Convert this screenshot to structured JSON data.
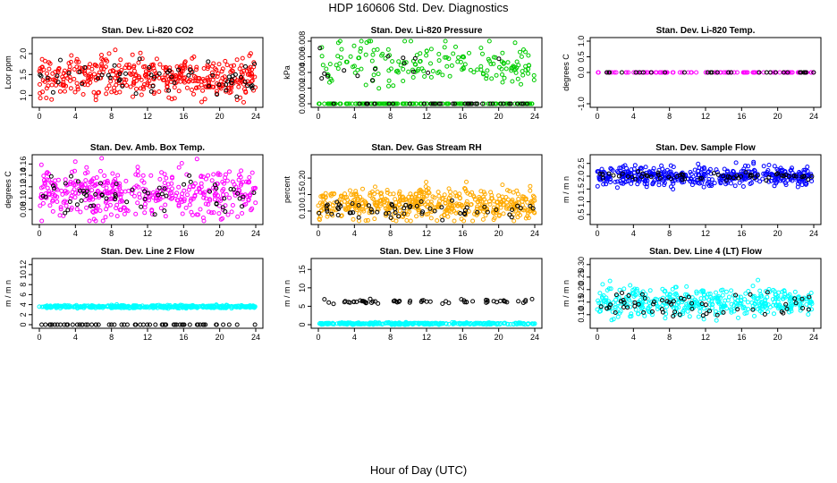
{
  "title": "HDP  160606  Std. Dev. Diagnostics",
  "xlabel": "Hour of Day (UTC)",
  "chart_data": [
    {
      "type": "scatter",
      "title": "Stan. Dev. Li-820 CO2",
      "ylabel": "Lcor ppm",
      "xlim": [
        0,
        24
      ],
      "ylim": [
        0.8,
        2.3
      ],
      "xticks": [
        "0",
        "4",
        "8",
        "12",
        "16",
        "20",
        "24"
      ],
      "yticks": [
        "1.0",
        "1.5",
        "2.0"
      ],
      "ytick_values": [
        1.0,
        1.5,
        2.0
      ],
      "series": [
        {
          "color": "#ff0000",
          "mean": 1.45,
          "spread": 0.25,
          "count": 420
        },
        {
          "color": "#000000",
          "mean": 1.4,
          "spread": 0.22,
          "count": 60
        }
      ]
    },
    {
      "type": "scatter",
      "title": "Stan. Dev. Li-820 Pressure",
      "ylabel": "kPa",
      "xlim": [
        0,
        24
      ],
      "ylim": [
        0,
        0.008
      ],
      "xticks": [
        "0",
        "4",
        "8",
        "12",
        "16",
        "20",
        "24"
      ],
      "yticks": [
        "0.000",
        "0.002",
        "0.004",
        "0.006",
        "0.008"
      ],
      "ytick_values": [
        0,
        0.002,
        0.004,
        0.006,
        0.008
      ],
      "series": [
        {
          "color": "#00cc00",
          "mean": 0.005,
          "spread": 0.0015,
          "count": 180
        },
        {
          "color": "#00cc00",
          "mean": 0.0,
          "spread": 0,
          "count": 150
        },
        {
          "color": "#000000",
          "mean": 0.0,
          "spread": 0,
          "count": 40
        },
        {
          "color": "#000000",
          "mean": 0.005,
          "spread": 0.0012,
          "count": 15
        }
      ]
    },
    {
      "type": "scatter",
      "title": "Stan. Dev. Li-820 Temp.",
      "ylabel": "degrees C",
      "xlim": [
        0,
        24
      ],
      "ylim": [
        -1,
        1
      ],
      "xticks": [
        "0",
        "4",
        "8",
        "12",
        "16",
        "20",
        "24"
      ],
      "yticks": [
        "-1.0",
        "0.0",
        "0.5",
        "1.0"
      ],
      "ytick_values": [
        -1,
        0,
        0.5,
        1
      ],
      "series": [
        {
          "color": "#ff00ff",
          "mean": 0.0,
          "spread": 0,
          "count": 90
        },
        {
          "color": "#000000",
          "mean": 0.0,
          "spread": 0,
          "count": 30
        }
      ]
    },
    {
      "type": "scatter",
      "title": "Stan. Dev. Amb. Box Temp.",
      "ylabel": "degrees C",
      "xlim": [
        0,
        24
      ],
      "ylim": [
        0.06,
        0.17
      ],
      "xticks": [
        "0",
        "4",
        "8",
        "12",
        "16",
        "20",
        "24"
      ],
      "yticks": [
        "0.08",
        "0.10",
        "0.12",
        "0.14",
        "0.16"
      ],
      "ytick_values": [
        0.08,
        0.1,
        0.12,
        0.14,
        0.16
      ],
      "series": [
        {
          "color": "#ff00ff",
          "mean": 0.11,
          "spread": 0.022,
          "count": 420
        },
        {
          "color": "#000000",
          "mean": 0.105,
          "spread": 0.018,
          "count": 60
        }
      ]
    },
    {
      "type": "scatter",
      "title": "Stan. Dev. Gas Stream RH",
      "ylabel": "percent",
      "xlim": [
        0,
        24
      ],
      "ylim": [
        0.07,
        0.26
      ],
      "xticks": [
        "0",
        "4",
        "8",
        "12",
        "16",
        "20",
        "24"
      ],
      "yticks": [
        "0.10",
        "0.15",
        "0.20"
      ],
      "ytick_values": [
        0.1,
        0.15,
        0.2
      ],
      "series": [
        {
          "color": "#ffaa00",
          "mean": 0.12,
          "spread": 0.025,
          "count": 500
        },
        {
          "color": "#000000",
          "mean": 0.105,
          "spread": 0.015,
          "count": 60
        }
      ]
    },
    {
      "type": "scatter",
      "title": "Stan. Dev. Sample Flow",
      "ylabel": "m / m n",
      "xlim": [
        0,
        24
      ],
      "ylim": [
        0.25,
        2.7
      ],
      "xticks": [
        "0",
        "4",
        "8",
        "12",
        "16",
        "20",
        "24"
      ],
      "yticks": [
        "0.5",
        "1.0",
        "1.5",
        "2.0",
        "2.5"
      ],
      "ytick_values": [
        0.5,
        1,
        1.5,
        2,
        2.5
      ],
      "series": [
        {
          "color": "#0000ff",
          "mean": 2.0,
          "spread": 0.2,
          "count": 450
        },
        {
          "color": "#000000",
          "mean": 2.0,
          "spread": 0.08,
          "count": 60
        }
      ]
    },
    {
      "type": "scatter",
      "title": "Stan. Dev. Line 2 Flow",
      "ylabel": "m / m n",
      "xlim": [
        0,
        24
      ],
      "ylim": [
        0,
        12.5
      ],
      "xticks": [
        "0",
        "4",
        "8",
        "12",
        "16",
        "20",
        "24"
      ],
      "yticks": [
        "0",
        "2",
        "4",
        "6",
        "8",
        "10",
        "12"
      ],
      "ytick_values": [
        0,
        2,
        4,
        6,
        8,
        10,
        12
      ],
      "series": [
        {
          "color": "#00ffff",
          "mean": 3.6,
          "spread": 0.15,
          "count": 400
        },
        {
          "color": "#000000",
          "mean": 0.0,
          "spread": 0,
          "count": 60
        }
      ]
    },
    {
      "type": "scatter",
      "title": "Stan. Dev. Line 3 Flow",
      "ylabel": "m / m n",
      "xlim": [
        0,
        24
      ],
      "ylim": [
        0,
        17
      ],
      "xticks": [
        "0",
        "4",
        "8",
        "12",
        "16",
        "20",
        "24"
      ],
      "yticks": [
        "0",
        "5",
        "10",
        "15"
      ],
      "ytick_values": [
        0,
        5,
        10,
        15
      ],
      "series": [
        {
          "color": "#00ffff",
          "mean": 0.3,
          "spread": 0.15,
          "count": 300
        },
        {
          "color": "#000000",
          "mean": 6.3,
          "spread": 0.3,
          "count": 60
        }
      ]
    },
    {
      "type": "scatter",
      "title": "Stan. Dev. Line 4 (LT) Flow",
      "ylabel": "m / m n",
      "xlim": [
        0,
        24
      ],
      "ylim": [
        0.06,
        0.31
      ],
      "xticks": [
        "0",
        "4",
        "8",
        "12",
        "16",
        "20",
        "24"
      ],
      "yticks": [
        "0.10",
        "0.15",
        "0.20",
        "0.25",
        "0.30"
      ],
      "ytick_values": [
        0.1,
        0.15,
        0.2,
        0.25,
        0.3
      ],
      "series": [
        {
          "color": "#00ffff",
          "mean": 0.15,
          "spread": 0.03,
          "count": 420
        },
        {
          "color": "#000000",
          "mean": 0.14,
          "spread": 0.025,
          "count": 60
        }
      ]
    }
  ]
}
